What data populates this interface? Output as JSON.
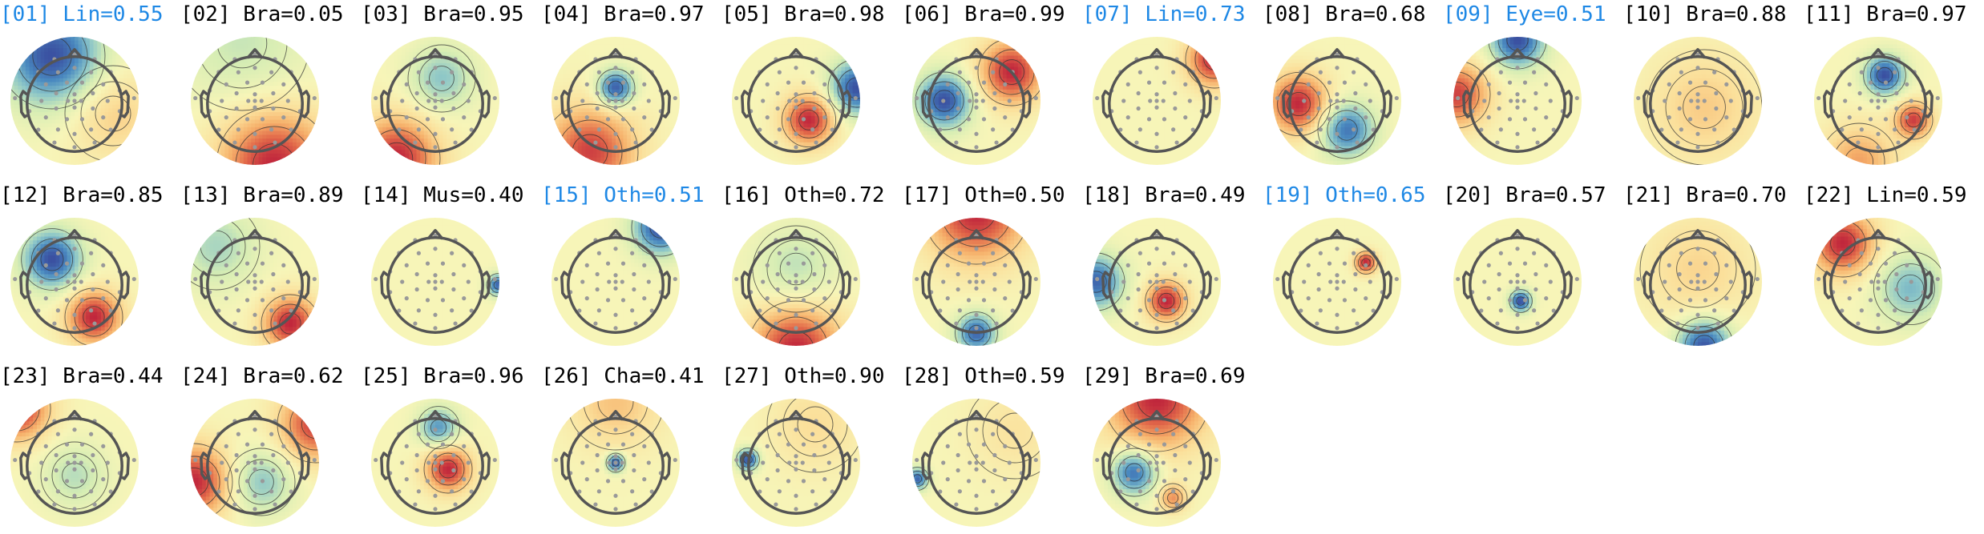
{
  "colors": {
    "label_default": "#000000",
    "label_highlight": "#1e88e5",
    "head_outline": "#555555",
    "electrode": "#999999",
    "contour": "#333333"
  },
  "colormap": "RdYlBu_r",
  "components": [
    {
      "label": "[01] Lin=0.55",
      "highlighted": true,
      "blobs": [
        {
          "u": -0.35,
          "v": 0.7,
          "s": 0.55,
          "a": -1.0
        },
        {
          "u": 0.6,
          "v": -0.2,
          "s": 0.5,
          "a": 0.35
        }
      ]
    },
    {
      "label": "[02] Bra=0.05",
      "highlighted": false,
      "blobs": [
        {
          "u": 0.3,
          "v": -1.0,
          "s": 0.6,
          "a": 1.0
        },
        {
          "u": -0.2,
          "v": 0.9,
          "s": 0.7,
          "a": -0.3
        }
      ]
    },
    {
      "label": "[03] Bra=0.95",
      "highlighted": false,
      "blobs": [
        {
          "u": -0.6,
          "v": -0.9,
          "s": 0.45,
          "a": 1.0
        },
        {
          "u": 0.1,
          "v": 0.35,
          "s": 0.35,
          "a": -0.5
        }
      ]
    },
    {
      "label": "[04] Bra=0.97",
      "highlighted": false,
      "blobs": [
        {
          "u": 0.0,
          "v": 0.2,
          "s": 0.2,
          "a": -1.0
        },
        {
          "u": -0.4,
          "v": -0.8,
          "s": 0.5,
          "a": 0.9
        }
      ]
    },
    {
      "label": "[05] Bra=0.98",
      "highlighted": false,
      "blobs": [
        {
          "u": 0.2,
          "v": -0.3,
          "s": 0.28,
          "a": 1.0
        },
        {
          "u": 0.95,
          "v": 0.2,
          "s": 0.3,
          "a": -1.0
        }
      ]
    },
    {
      "label": "[06] Bra=0.99",
      "highlighted": false,
      "blobs": [
        {
          "u": -0.5,
          "v": 0.0,
          "s": 0.3,
          "a": -1.0
        },
        {
          "u": 0.55,
          "v": 0.45,
          "s": 0.35,
          "a": 1.0
        }
      ]
    },
    {
      "label": "[07] Lin=0.73",
      "highlighted": true,
      "blobs": [
        {
          "u": 0.9,
          "v": 0.65,
          "s": 0.3,
          "a": 1.0
        }
      ]
    },
    {
      "label": "[08] Bra=0.68",
      "highlighted": false,
      "blobs": [
        {
          "u": -0.6,
          "v": -0.05,
          "s": 0.33,
          "a": 1.0
        },
        {
          "u": 0.15,
          "v": -0.45,
          "s": 0.3,
          "a": -0.85
        }
      ]
    },
    {
      "label": "[09] Eye=0.51",
      "highlighted": true,
      "blobs": [
        {
          "u": 0.0,
          "v": 0.95,
          "s": 0.3,
          "a": -1.0
        },
        {
          "u": -0.95,
          "v": 0.1,
          "s": 0.35,
          "a": 0.9
        }
      ]
    },
    {
      "label": "[10] Bra=0.88",
      "highlighted": false,
      "blobs": [
        {
          "u": 0.1,
          "v": -0.1,
          "s": 0.6,
          "a": 0.35
        }
      ]
    },
    {
      "label": "[11] Bra=0.97",
      "highlighted": false,
      "blobs": [
        {
          "u": 0.1,
          "v": 0.4,
          "s": 0.22,
          "a": -1.0
        },
        {
          "u": 0.55,
          "v": -0.3,
          "s": 0.2,
          "a": 0.9
        },
        {
          "u": -0.3,
          "v": -0.95,
          "s": 0.4,
          "a": 0.55
        }
      ]
    },
    {
      "label": "[12] Bra=0.85",
      "highlighted": false,
      "blobs": [
        {
          "u": -0.35,
          "v": 0.35,
          "s": 0.32,
          "a": -1.0
        },
        {
          "u": 0.3,
          "v": -0.55,
          "s": 0.3,
          "a": 1.0
        }
      ]
    },
    {
      "label": "[13] Bra=0.89",
      "highlighted": false,
      "blobs": [
        {
          "u": 0.55,
          "v": -0.65,
          "s": 0.3,
          "a": 1.0
        },
        {
          "u": -0.6,
          "v": 0.55,
          "s": 0.45,
          "a": -0.4
        }
      ]
    },
    {
      "label": "[14] Mus=0.40",
      "highlighted": false,
      "blobs": [
        {
          "u": 0.98,
          "v": -0.05,
          "s": 0.12,
          "a": -0.9
        }
      ]
    },
    {
      "label": "[15] Oth=0.51",
      "highlighted": true,
      "blobs": [
        {
          "u": 0.7,
          "v": 0.85,
          "s": 0.3,
          "a": -1.0
        }
      ]
    },
    {
      "label": "[16] Oth=0.72",
      "highlighted": false,
      "blobs": [
        {
          "u": 0.0,
          "v": -1.05,
          "s": 0.5,
          "a": 1.0
        },
        {
          "u": 0.0,
          "v": 0.2,
          "s": 0.45,
          "a": -0.35
        }
      ]
    },
    {
      "label": "[17] Oth=0.50",
      "highlighted": false,
      "blobs": [
        {
          "u": 0.0,
          "v": 1.1,
          "s": 0.55,
          "a": 1.0
        },
        {
          "u": 0.0,
          "v": -0.8,
          "s": 0.22,
          "a": -0.9
        }
      ]
    },
    {
      "label": "[18] Bra=0.49",
      "highlighted": false,
      "blobs": [
        {
          "u": 0.15,
          "v": -0.3,
          "s": 0.22,
          "a": 1.0
        },
        {
          "u": -0.95,
          "v": 0.0,
          "s": 0.3,
          "a": -0.9
        }
      ]
    },
    {
      "label": "[19] Oth=0.65",
      "highlighted": true,
      "blobs": [
        {
          "u": 0.45,
          "v": 0.3,
          "s": 0.12,
          "a": 1.0
        }
      ]
    },
    {
      "label": "[20] Bra=0.57",
      "highlighted": false,
      "blobs": [
        {
          "u": 0.05,
          "v": -0.3,
          "s": 0.12,
          "a": -1.0
        }
      ]
    },
    {
      "label": "[21] Bra=0.70",
      "highlighted": false,
      "blobs": [
        {
          "u": 0.1,
          "v": -1.0,
          "s": 0.3,
          "a": -1.0
        },
        {
          "u": 0.0,
          "v": 0.2,
          "s": 0.6,
          "a": 0.3
        }
      ]
    },
    {
      "label": "[22] Lin=0.59",
      "highlighted": false,
      "blobs": [
        {
          "u": -0.55,
          "v": 0.6,
          "s": 0.35,
          "a": 1.0
        },
        {
          "u": 0.5,
          "v": -0.1,
          "s": 0.38,
          "a": -0.55
        }
      ]
    },
    {
      "label": "[23] Bra=0.44",
      "highlighted": false,
      "blobs": [
        {
          "u": -0.9,
          "v": 0.85,
          "s": 0.35,
          "a": 1.0
        },
        {
          "u": 0.0,
          "v": -0.2,
          "s": 0.35,
          "a": -0.35
        }
      ]
    },
    {
      "label": "[24] Bra=0.62",
      "highlighted": false,
      "blobs": [
        {
          "u": -0.95,
          "v": -0.3,
          "s": 0.4,
          "a": 1.0
        },
        {
          "u": 0.95,
          "v": 0.6,
          "s": 0.4,
          "a": 0.9
        },
        {
          "u": 0.1,
          "v": -0.3,
          "s": 0.35,
          "a": -0.5
        }
      ]
    },
    {
      "label": "[25] Bra=0.96",
      "highlighted": false,
      "blobs": [
        {
          "u": 0.2,
          "v": -0.1,
          "s": 0.25,
          "a": 1.0
        },
        {
          "u": 0.05,
          "v": 0.55,
          "s": 0.22,
          "a": -0.7
        }
      ]
    },
    {
      "label": "[26] Cha=0.41",
      "highlighted": false,
      "blobs": [
        {
          "u": 0.0,
          "v": 0.0,
          "s": 0.1,
          "a": -1.0
        },
        {
          "u": 0.0,
          "v": 0.95,
          "s": 0.5,
          "a": 0.4
        }
      ]
    },
    {
      "label": "[27] Oth=0.90",
      "highlighted": false,
      "blobs": [
        {
          "u": -0.75,
          "v": 0.05,
          "s": 0.12,
          "a": -1.0
        },
        {
          "u": 0.3,
          "v": 0.6,
          "s": 0.5,
          "a": 0.25
        }
      ]
    },
    {
      "label": "[28] Oth=0.59",
      "highlighted": false,
      "blobs": [
        {
          "u": -0.92,
          "v": -0.25,
          "s": 0.12,
          "a": -0.9
        },
        {
          "u": 0.6,
          "v": 0.5,
          "s": 0.5,
          "a": 0.2
        }
      ]
    },
    {
      "label": "[29] Bra=0.69",
      "highlighted": false,
      "blobs": [
        {
          "u": 0.0,
          "v": 1.0,
          "s": 0.55,
          "a": 1.0
        },
        {
          "u": -0.35,
          "v": -0.15,
          "s": 0.25,
          "a": -0.9
        },
        {
          "u": 0.25,
          "v": -0.55,
          "s": 0.15,
          "a": 0.6
        }
      ]
    }
  ]
}
